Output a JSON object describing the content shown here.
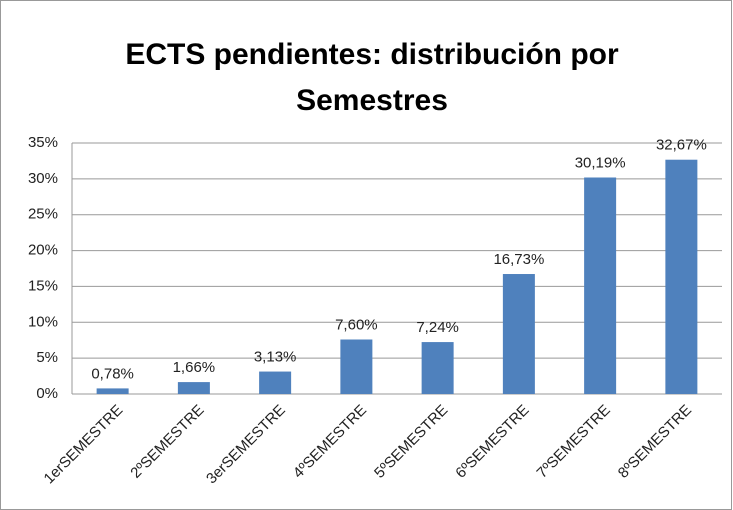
{
  "chart_data": {
    "type": "bar",
    "title": "ECTS pendientes: distribución por Semestres",
    "categories": [
      "1erSEMESTRE",
      "2ºSEMESTRE",
      "3erSEMESTRE",
      "4ºSEMESTRE",
      "5ºSEMESTRE",
      "6ºSEMESTRE",
      "7ºSEMESTRE",
      "8ºSEMESTRE"
    ],
    "values": [
      0.78,
      1.66,
      3.13,
      7.6,
      7.24,
      16.73,
      30.19,
      32.67
    ],
    "value_labels": [
      "0,78%",
      "1,66%",
      "3,13%",
      "7,60%",
      "7,24%",
      "16,73%",
      "30,19%",
      "32,67%"
    ],
    "color": "#4f81bd",
    "ylim": [
      0,
      35
    ],
    "yticks": [
      {
        "value": 0,
        "label": "0%"
      },
      {
        "value": 5,
        "label": "5%"
      },
      {
        "value": 10,
        "label": "10%"
      },
      {
        "value": 15,
        "label": "15%"
      },
      {
        "value": 20,
        "label": "20%"
      },
      {
        "value": 25,
        "label": "25%"
      },
      {
        "value": 30,
        "label": "30%"
      },
      {
        "value": 35,
        "label": "35%"
      }
    ],
    "grid": true
  }
}
